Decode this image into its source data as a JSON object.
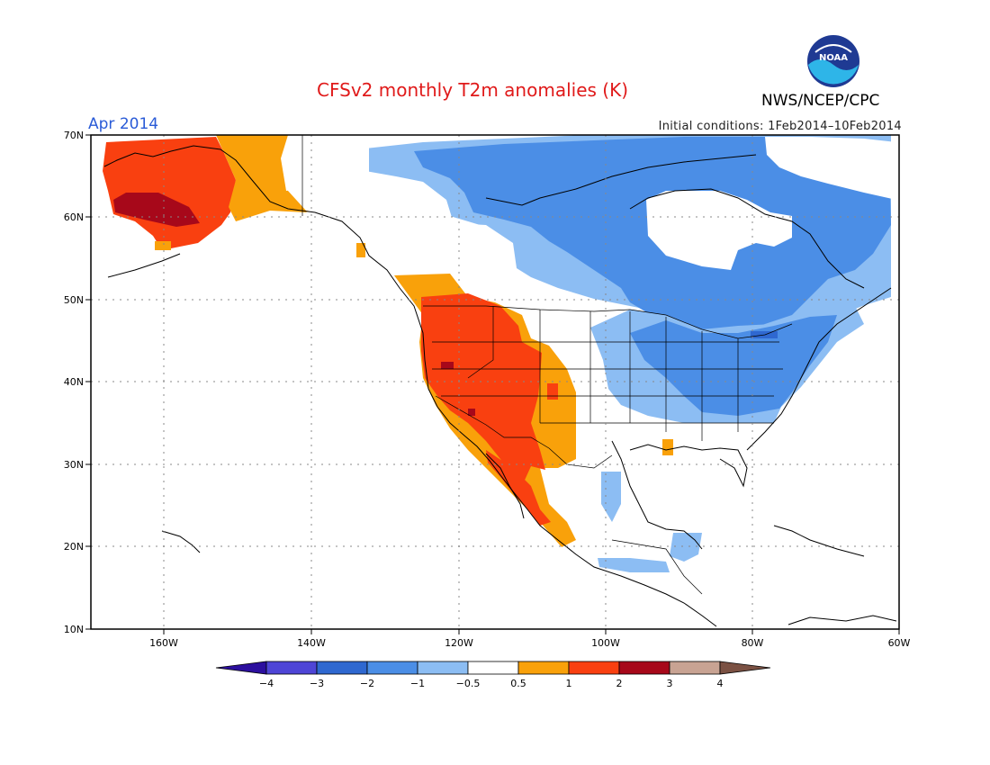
{
  "header": {
    "title": "CFSv2 monthly T2m anomalies (K)",
    "org": "NWS/NCEP/CPC",
    "month": "Apr 2014",
    "initial_conditions": "Initial conditions: 1Feb2014–10Feb2014",
    "logo_text": "NOAA"
  },
  "map": {
    "lat_labels": [
      "70N",
      "60N",
      "50N",
      "40N",
      "30N",
      "20N",
      "10N"
    ],
    "lon_labels": [
      "160W",
      "140W",
      "120W",
      "100W",
      "80W",
      "60W"
    ]
  },
  "colorbar": {
    "tick_labels": [
      "−4",
      "−3",
      "−2",
      "−1",
      "−0.5",
      "0.5",
      "1",
      "2",
      "3",
      "4"
    ],
    "colors": [
      "#2c0f9e",
      "#4e45d6",
      "#2f68d0",
      "#4b8ee6",
      "#8cbdf3",
      "#ffffff",
      "#f9a10a",
      "#f94010",
      "#a7081a",
      "#c8a393",
      "#7b5143"
    ]
  }
}
